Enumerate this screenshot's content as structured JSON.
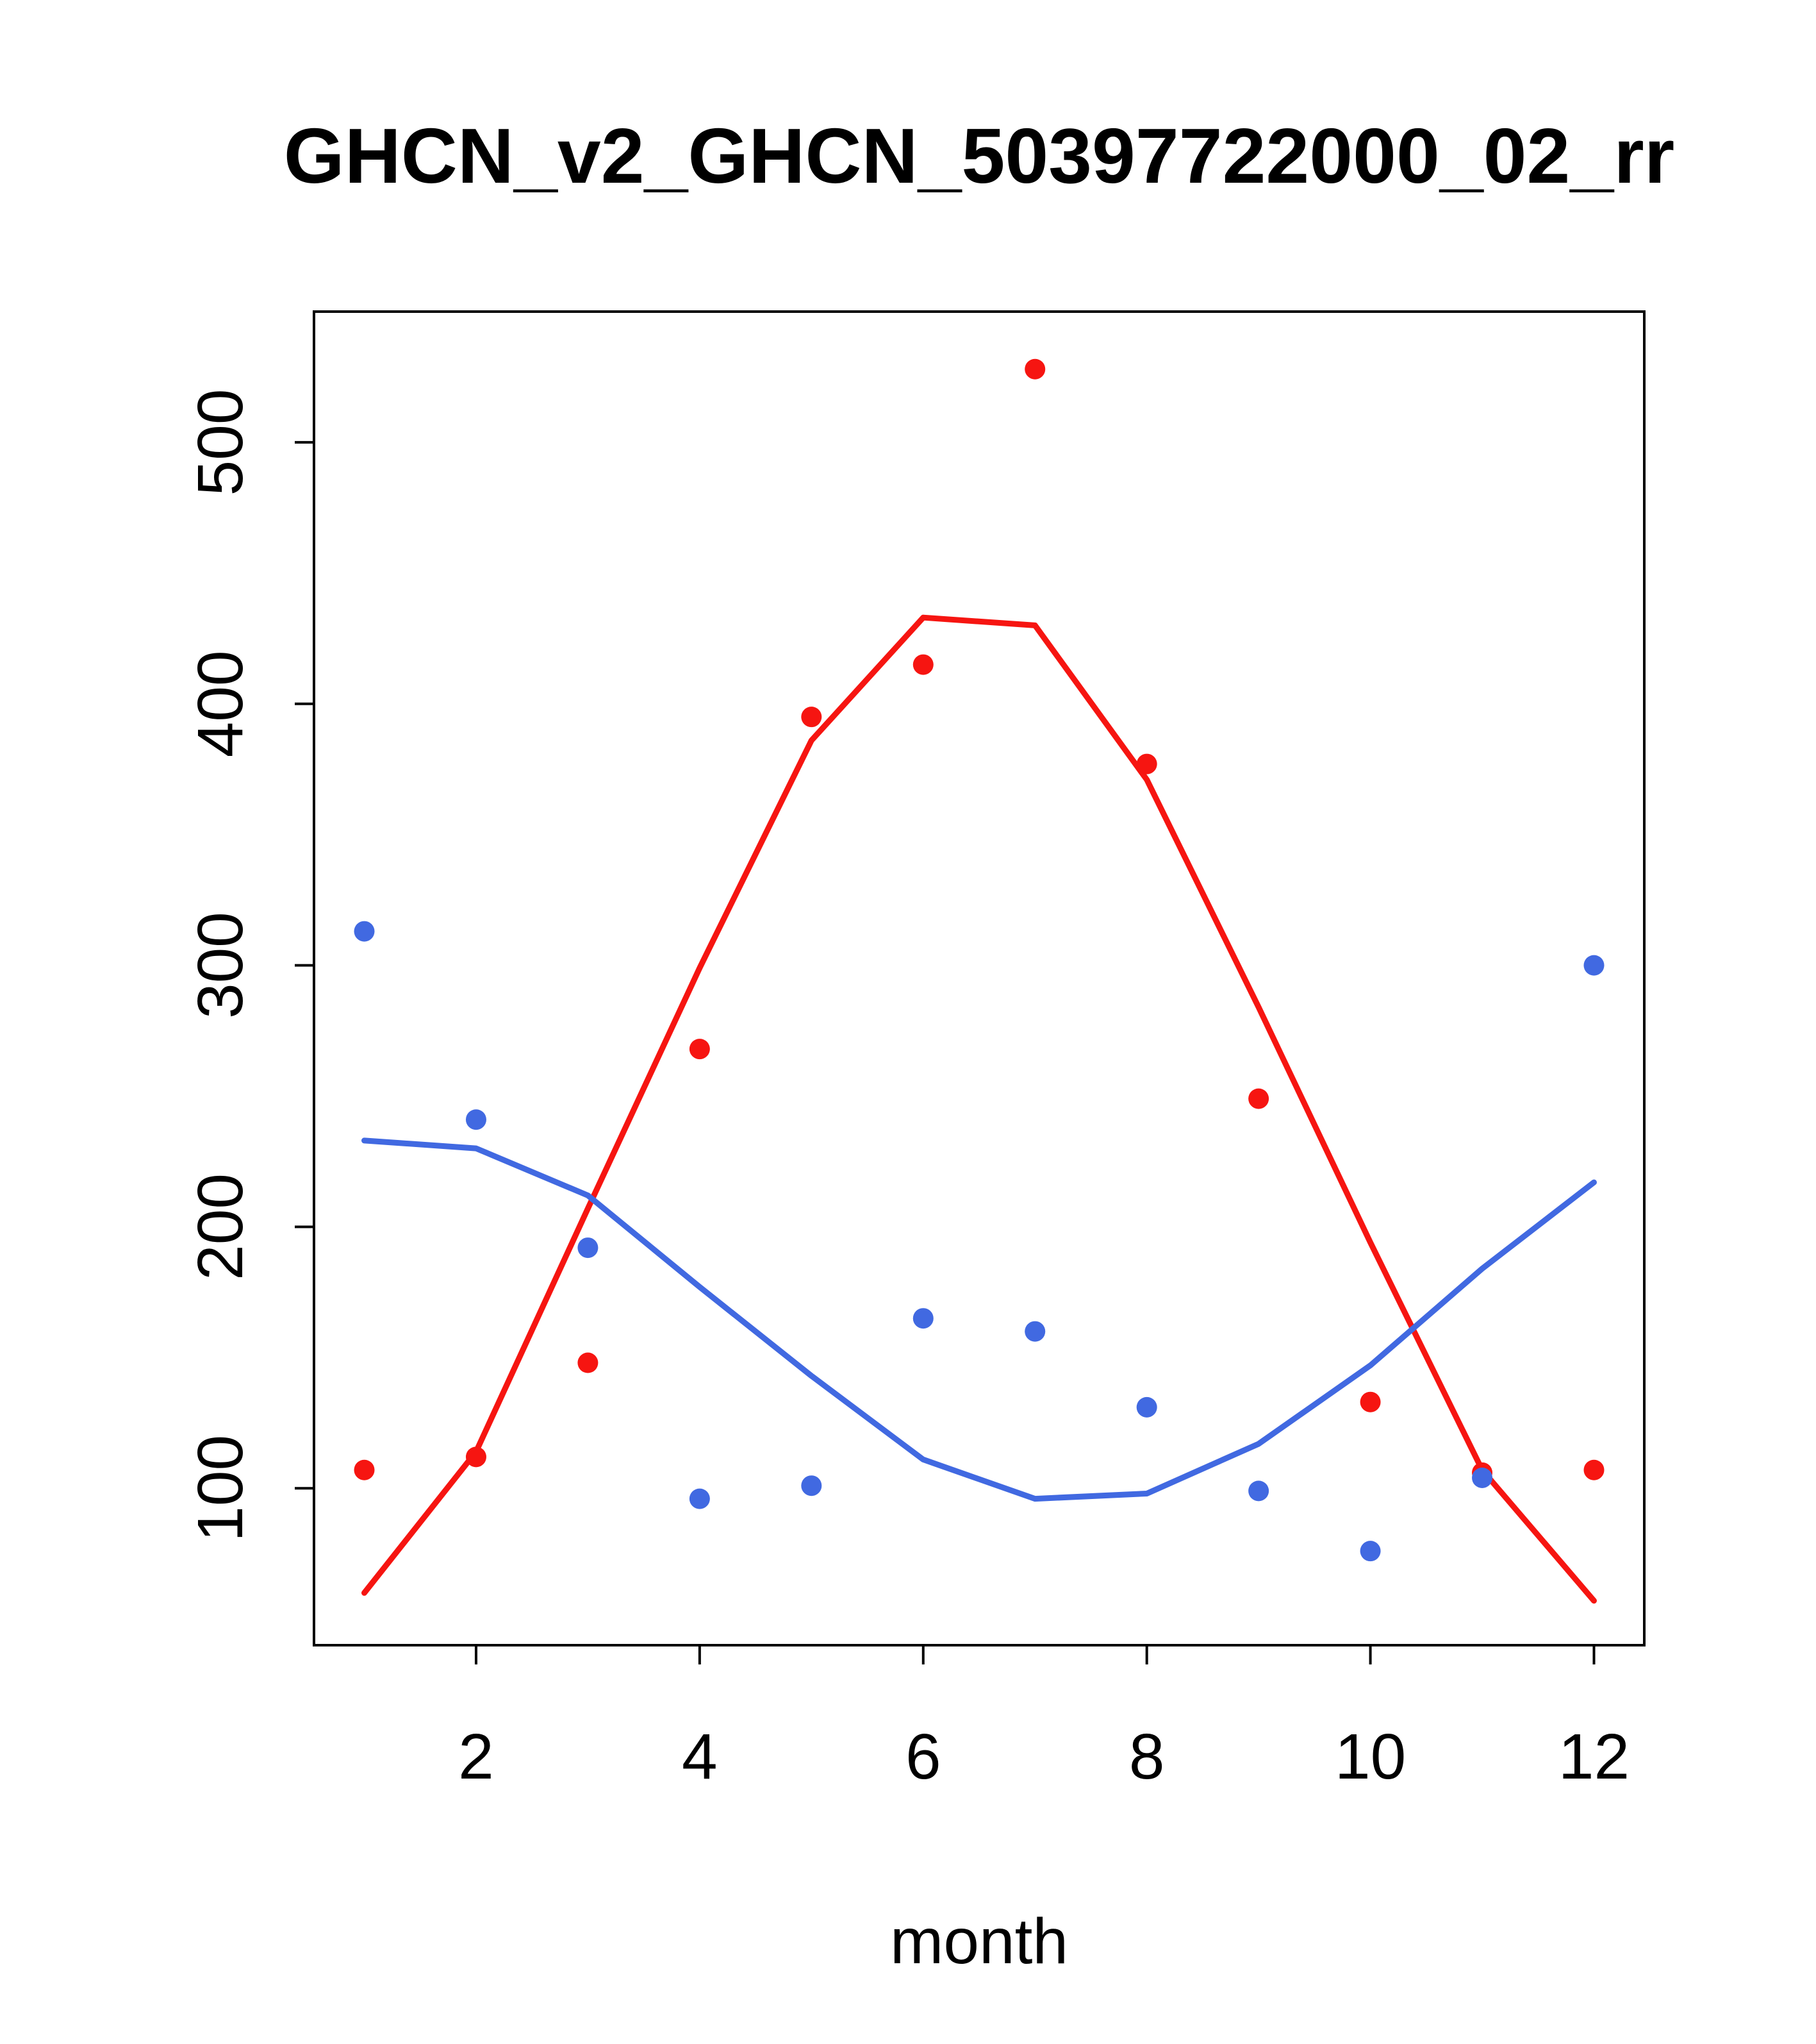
{
  "chart_data": {
    "type": "scatter",
    "title": "GHCN_v2_GHCN_50397722000_02_rr",
    "xlabel": "month",
    "ylabel": "",
    "x": [
      1,
      2,
      3,
      4,
      5,
      6,
      7,
      8,
      9,
      10,
      11,
      12
    ],
    "xlim": [
      0.55,
      12.45
    ],
    "ylim": [
      40,
      550
    ],
    "x_ticks": [
      2,
      4,
      6,
      8,
      10,
      12
    ],
    "y_ticks": [
      100,
      200,
      300,
      400,
      500
    ],
    "grid": false,
    "legend": "none",
    "colors": {
      "red_series": "#f61511",
      "blue_series": "#4169e1",
      "axis": "#000000",
      "background": "#ffffff"
    },
    "series": [
      {
        "name": "red-observations",
        "type": "points",
        "color": "#f61511",
        "values": [
          107,
          112,
          148,
          268,
          395,
          415,
          528,
          377,
          249,
          133,
          106,
          107
        ]
      },
      {
        "name": "blue-observations",
        "type": "points",
        "color": "#4169e1",
        "values": [
          313,
          241,
          192,
          96,
          101,
          165,
          160,
          131,
          99,
          76,
          104,
          300
        ]
      },
      {
        "name": "red-smooth",
        "type": "line",
        "color": "#f61511",
        "values": [
          60,
          114,
          207,
          299,
          386,
          433,
          430,
          371,
          284,
          194,
          107,
          57
        ]
      },
      {
        "name": "blue-smooth",
        "type": "line",
        "color": "#4169e1",
        "values": [
          233,
          230,
          212,
          177,
          143,
          111,
          96,
          98,
          117,
          147,
          184,
          217
        ]
      }
    ]
  }
}
